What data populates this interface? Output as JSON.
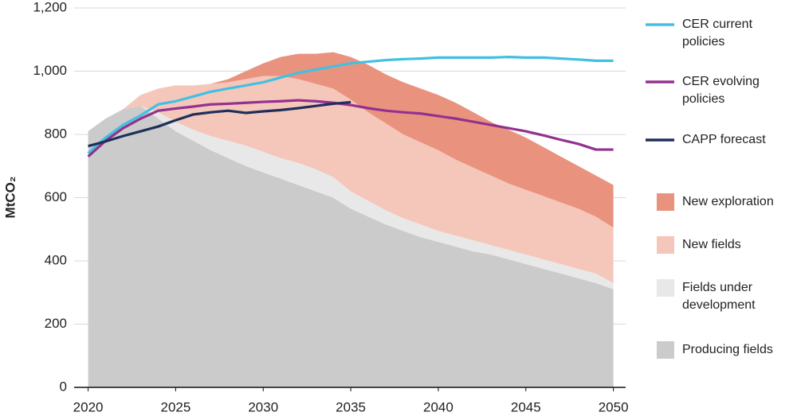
{
  "chart_data": {
    "type": "area",
    "y_label": "MtCO₂",
    "x": [
      2020,
      2021,
      2022,
      2023,
      2024,
      2025,
      2026,
      2027,
      2028,
      2029,
      2030,
      2031,
      2032,
      2033,
      2034,
      2035,
      2036,
      2037,
      2038,
      2039,
      2040,
      2041,
      2042,
      2043,
      2044,
      2045,
      2046,
      2047,
      2048,
      2049,
      2050
    ],
    "xlim": [
      2019.2,
      2050.7
    ],
    "xticks": [
      2020,
      2025,
      2030,
      2035,
      2040,
      2045,
      2050
    ],
    "ylim": [
      0,
      1200
    ],
    "yticks": [
      0,
      200,
      400,
      600,
      800,
      {
        "value": 1000,
        "label": "1,000"
      },
      {
        "value": 1200,
        "label": "1,200"
      }
    ],
    "grid": true,
    "stacked": true,
    "series": [
      {
        "name": "Producing fields",
        "type": "area",
        "color": "#cbcbcb",
        "values": [
          810,
          850,
          880,
          890,
          850,
          810,
          780,
          750,
          725,
          700,
          680,
          660,
          640,
          620,
          600,
          565,
          540,
          515,
          495,
          475,
          460,
          445,
          430,
          420,
          405,
          390,
          375,
          360,
          345,
          330,
          310
        ]
      },
      {
        "name": "Fields under development",
        "type": "area",
        "color": "#e8e8e8",
        "values": [
          0,
          0,
          0,
          0,
          20,
          30,
          35,
          45,
          55,
          65,
          65,
          65,
          70,
          70,
          65,
          55,
          50,
          45,
          40,
          40,
          35,
          35,
          35,
          30,
          30,
          30,
          30,
          30,
          30,
          30,
          20
        ]
      },
      {
        "name": "New fields",
        "type": "area",
        "color": "#f5c6ba",
        "values": [
          0,
          0,
          0,
          35,
          75,
          115,
          140,
          165,
          185,
          210,
          240,
          260,
          265,
          270,
          280,
          290,
          280,
          275,
          265,
          260,
          255,
          240,
          230,
          220,
          210,
          205,
          200,
          195,
          190,
          180,
          175
        ]
      },
      {
        "name": "New exploration",
        "type": "area",
        "color": "#e9937f",
        "values": [
          0,
          0,
          0,
          0,
          0,
          0,
          0,
          0,
          10,
          25,
          40,
          60,
          80,
          95,
          115,
          135,
          150,
          155,
          165,
          170,
          175,
          180,
          175,
          170,
          170,
          165,
          155,
          145,
          135,
          130,
          135
        ]
      },
      {
        "name": "CER current policies",
        "type": "line",
        "color": "#41c0e2",
        "values": [
          740,
          790,
          830,
          860,
          895,
          905,
          920,
          935,
          945,
          955,
          965,
          980,
          995,
          1005,
          1015,
          1025,
          1030,
          1035,
          1038,
          1040,
          1043,
          1043,
          1043,
          1043,
          1045,
          1043,
          1043,
          1040,
          1037,
          1033,
          1033
        ]
      },
      {
        "name": "CER evolving policies",
        "type": "line",
        "color": "#93318f",
        "values": [
          730,
          780,
          820,
          850,
          875,
          882,
          888,
          895,
          897,
          900,
          903,
          905,
          908,
          905,
          900,
          893,
          883,
          875,
          870,
          866,
          858,
          850,
          840,
          830,
          820,
          810,
          797,
          783,
          770,
          752,
          752
        ]
      },
      {
        "name": "CAPP forecast",
        "type": "line",
        "color": "#1e2f5a",
        "values": [
          763,
          778,
          795,
          810,
          825,
          845,
          863,
          870,
          875,
          868,
          873,
          877,
          883,
          890,
          897,
          902,
          null,
          null,
          null,
          null,
          null,
          null,
          null,
          null,
          null,
          null,
          null,
          null,
          null,
          null,
          null
        ]
      }
    ]
  }
}
